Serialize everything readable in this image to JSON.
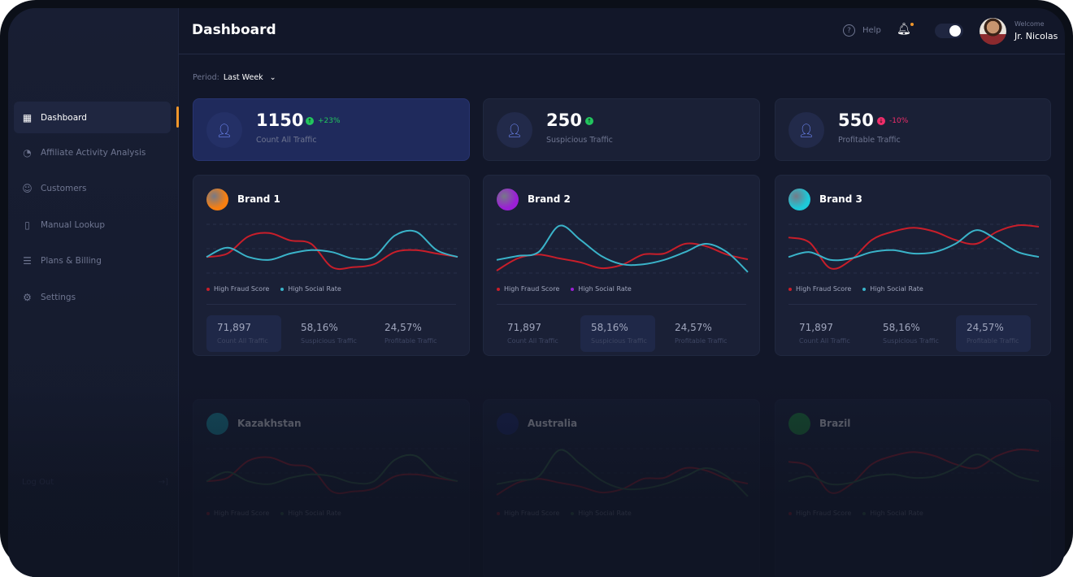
{
  "header": {
    "title": "Dashboard",
    "help_label": "Help",
    "welcome": "Welcome",
    "user_name": "Jr. Nicolas"
  },
  "sidebar": {
    "items": [
      {
        "label": "Dashboard",
        "icon": "grid-icon",
        "active": true
      },
      {
        "label": "Affiliate Activity Analysis",
        "icon": "pie-chart-icon"
      },
      {
        "label": "Customers",
        "icon": "smile-icon"
      },
      {
        "label": "Manual Lookup",
        "icon": "document-icon"
      },
      {
        "label": "Plans & Billing",
        "icon": "billing-icon"
      },
      {
        "label": "Settings",
        "icon": "gear-icon"
      }
    ],
    "logout": "Log Out"
  },
  "period": {
    "label": "Period:",
    "value": "Last Week"
  },
  "stats": [
    {
      "value": "1150",
      "change": "+23%",
      "direction": "up",
      "label": "Count All Traffic",
      "icon": "users-icon"
    },
    {
      "value": "250",
      "change": "",
      "direction": "up",
      "label": "Suspicious Traffic",
      "icon": "user-alert-icon"
    },
    {
      "value": "550",
      "change": "-10%",
      "direction": "down",
      "label": "Profitable Traffic",
      "icon": "user-check-icon"
    }
  ],
  "colors": {
    "up": "#22c55e",
    "down": "#ef2d6b",
    "fraud": "#c81e2a",
    "social": "#3ab3c9",
    "accent": "#f0962a"
  },
  "legend": {
    "fraud": "High Fraud Score",
    "social": "High Social Rate"
  },
  "brands": [
    {
      "name": "Brand 1",
      "logo_color": "#f77f11",
      "social_dot": "#3ab3c9",
      "highlight": 0,
      "metrics": [
        {
          "value": "71,897",
          "label": "Count All Traffic"
        },
        {
          "value": "58,16%",
          "label": "Suspicious Traffic"
        },
        {
          "value": "24,57%",
          "label": "Profitable Traffic"
        }
      ],
      "fraud": [
        33,
        40,
        75,
        82,
        67,
        60,
        12,
        12,
        18,
        43,
        47,
        40,
        33
      ],
      "social": [
        33,
        52,
        33,
        27,
        40,
        47,
        43,
        30,
        33,
        77,
        85,
        47,
        33
      ]
    },
    {
      "name": "Brand 2",
      "logo_color": "#9b1fd6",
      "social_dot": "#9b1fd6",
      "highlight": 1,
      "metrics": [
        {
          "value": "71,897",
          "label": "Count All Traffic"
        },
        {
          "value": "58,16%",
          "label": "Suspicious Traffic"
        },
        {
          "value": "24,57%",
          "label": "Profitable Traffic"
        }
      ],
      "fraud": [
        5,
        30,
        38,
        30,
        22,
        10,
        17,
        38,
        40,
        60,
        55,
        38,
        28
      ],
      "social": [
        27,
        35,
        43,
        97,
        68,
        35,
        18,
        18,
        27,
        43,
        60,
        43,
        2
      ]
    },
    {
      "name": "Brand 3",
      "logo_color": "#1ec8d8",
      "social_dot": "#3ab3c9",
      "highlight": 2,
      "metrics": [
        {
          "value": "71,897",
          "label": "Count All Traffic"
        },
        {
          "value": "58,16%",
          "label": "Suspicious Traffic"
        },
        {
          "value": "24,57%",
          "label": "Profitable Traffic"
        }
      ],
      "fraud": [
        73,
        63,
        10,
        27,
        68,
        85,
        93,
        85,
        68,
        60,
        85,
        98,
        95
      ],
      "social": [
        33,
        43,
        27,
        30,
        43,
        47,
        40,
        43,
        60,
        88,
        68,
        43,
        33
      ]
    }
  ],
  "countries": [
    {
      "name": "Kazakhstan",
      "flag_color": "#1aa6b7"
    },
    {
      "name": "Australia",
      "flag_color": "#1d2a6b"
    },
    {
      "name": "Brazil",
      "flag_color": "#1f9a3a"
    }
  ]
}
